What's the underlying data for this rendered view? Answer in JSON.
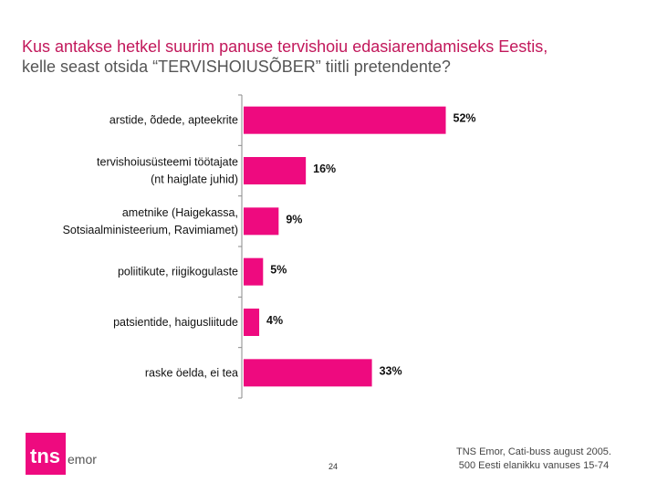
{
  "title": {
    "line1": "Kus antakse hetkel suurim panuse tervishoiu edasiarendamiseks Eestis,",
    "line2": "kelle seast otsida “TERVISHOIUSÕBER” tiitli pretendente?"
  },
  "chart_data": {
    "type": "bar",
    "orientation": "horizontal",
    "categories": [
      [
        "arstide, õdede, apteekrite"
      ],
      [
        "tervishoiusüsteemi töötajate",
        "(nt haiglate juhid)"
      ],
      [
        "ametnike (Haigekassa,",
        "Sotsiaalministeerium, Ravimiamet)"
      ],
      [
        "poliitikute, riigikogulaste"
      ],
      [
        "patsientide, haigusliitude"
      ],
      [
        "raske öelda, ei tea"
      ]
    ],
    "values": [
      52,
      16,
      9,
      5,
      4,
      33
    ],
    "value_labels": [
      "52%",
      "16%",
      "9%",
      "5%",
      "4%",
      "33%"
    ],
    "bar_color": "#ee0a7f",
    "xlim": [
      0,
      60
    ],
    "grid": false,
    "legend": "none"
  },
  "footer": {
    "page_number": "24",
    "source_line1": "TNS Emor, Cati-buss august 2005.",
    "source_line2": "500 Eesti elanikku vanuses 15-74"
  },
  "logo": {
    "brand": "tns",
    "sub": "emor",
    "color": "#ee0a7f"
  }
}
